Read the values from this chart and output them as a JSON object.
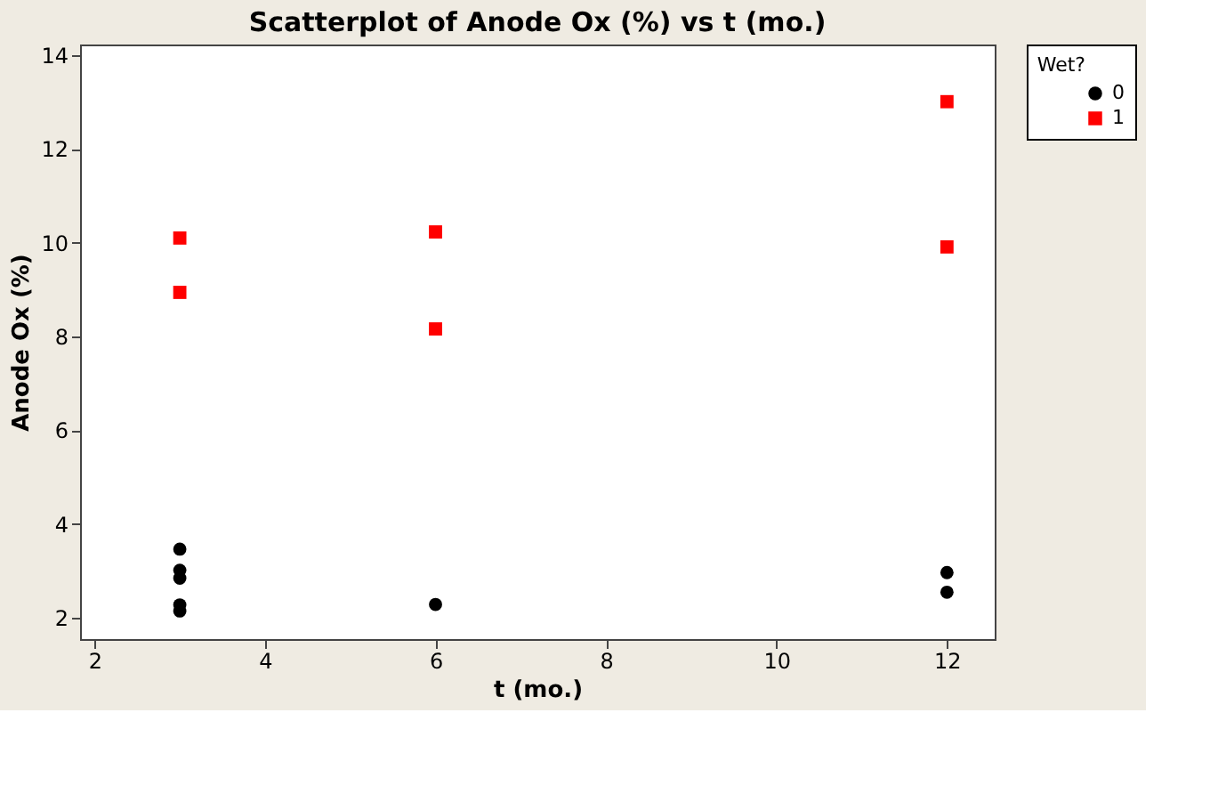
{
  "chart_data": {
    "type": "scatter",
    "title": "Scatterplot of Anode Ox (%) vs t (mo.)",
    "xlabel": "t (mo.)",
    "ylabel": "Anode Ox (%)",
    "legend_title": "Wet?",
    "series": [
      {
        "name": "0",
        "color": "#000000",
        "marker": "circle",
        "x": [
          3,
          3,
          3,
          3,
          3,
          6,
          12,
          12
        ],
        "values": [
          3.46,
          3.01,
          2.84,
          2.27,
          2.14,
          2.28,
          2.96,
          2.54
        ]
      },
      {
        "name": "1",
        "color": "#ff0000",
        "marker": "square",
        "x": [
          3,
          3,
          6,
          6,
          12,
          12
        ],
        "values": [
          10.1,
          8.94,
          10.23,
          8.16,
          13.01,
          9.91
        ]
      }
    ],
    "xlim": [
      1.83,
      12.56
    ],
    "ylim": [
      1.54,
      14.23
    ],
    "xticks": [
      2,
      4,
      6,
      8,
      10,
      12
    ],
    "yticks": [
      2,
      4,
      6,
      8,
      10,
      12,
      14
    ],
    "grid": false,
    "legend": "top right"
  }
}
